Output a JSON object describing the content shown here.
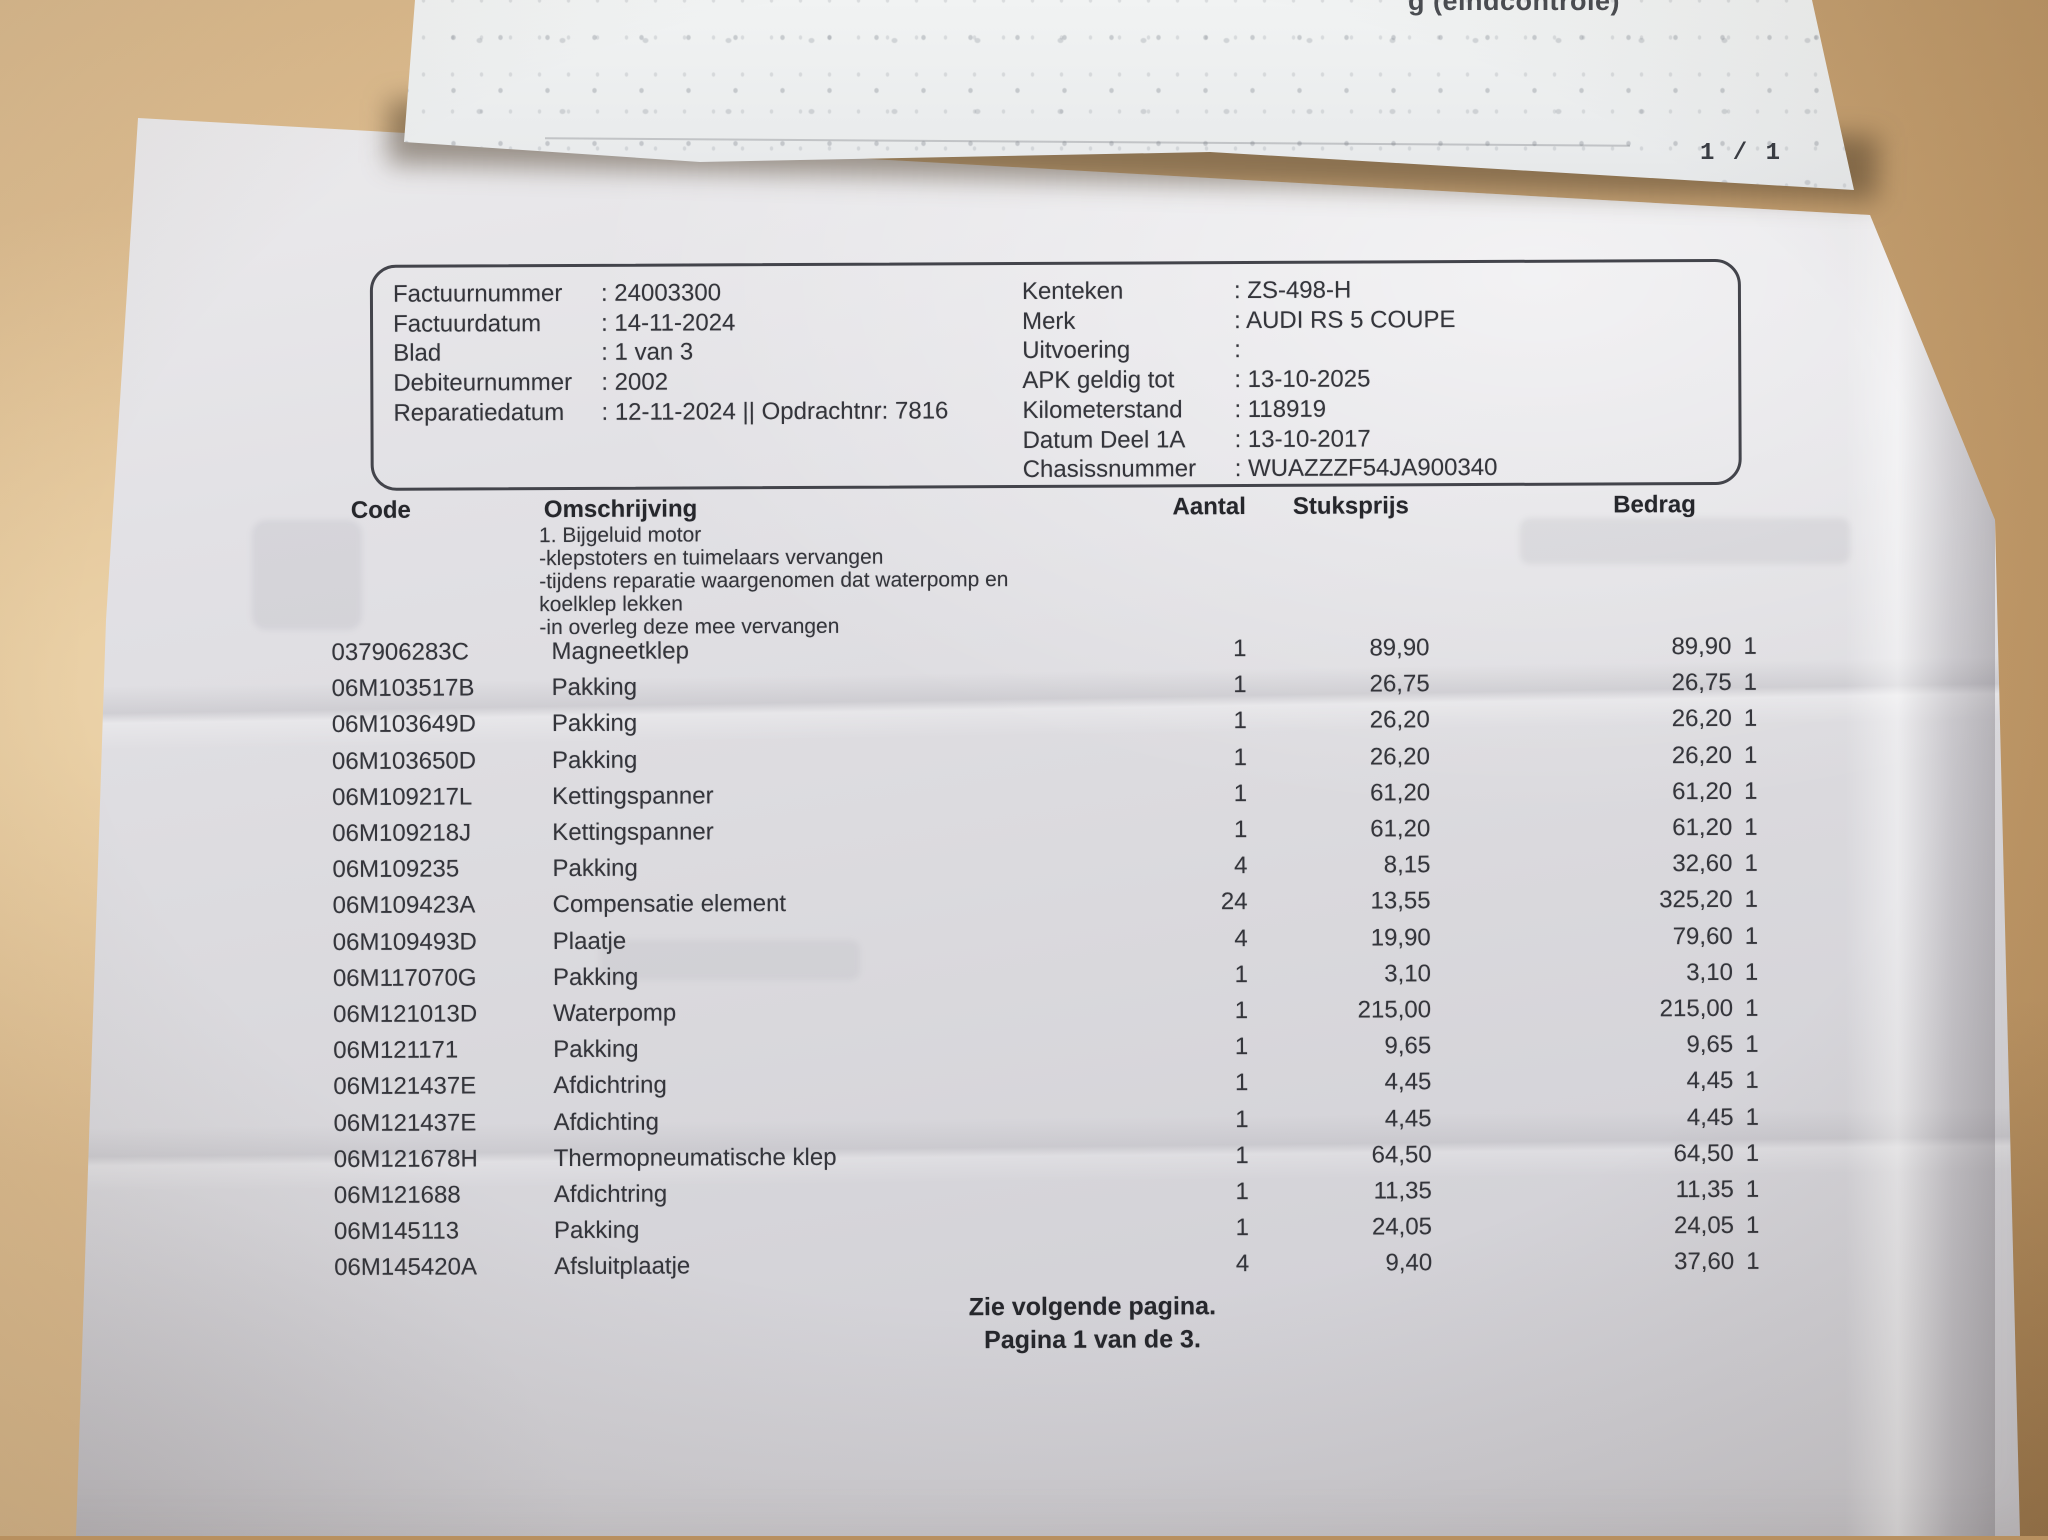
{
  "back_page": {
    "header_fragment": "g (eindcontrole)",
    "page_indicator": "1 / 1"
  },
  "invoice": {
    "meta_left": [
      {
        "label": "Factuurnummer",
        "value": ": 24003300"
      },
      {
        "label": "Factuurdatum",
        "value": ": 14-11-2024"
      },
      {
        "label": "Blad",
        "value": ": 1 van 3"
      },
      {
        "label": "Debiteurnummer",
        "value": ": 2002"
      },
      {
        "label": "Reparatiedatum",
        "value": ": 12-11-2024 || Opdrachtnr: 7816"
      }
    ],
    "meta_right": [
      {
        "label": "Kenteken",
        "value": ": ZS-498-H"
      },
      {
        "label": "Merk",
        "value": ": AUDI RS 5 COUPE"
      },
      {
        "label": "Uitvoering",
        "value": ":"
      },
      {
        "label": "APK geldig tot",
        "value": ": 13-10-2025"
      },
      {
        "label": "Kilometerstand",
        "value": ": 118919"
      },
      {
        "label": "Datum Deel 1A",
        "value": ": 13-10-2017"
      },
      {
        "label": "Chasissnummer",
        "value": ": WUAZZZF54JA900340"
      }
    ],
    "table": {
      "headers": {
        "code": "Code",
        "description": "Omschrijving",
        "qty": "Aantal",
        "unit_price": "Stuksprijs",
        "amount": "Bedrag"
      },
      "rows": [
        {
          "code": "037906283C",
          "description": "Magneetklep",
          "qty": "1",
          "unit_price": "89,90",
          "amount": "89,90",
          "vat": "1"
        },
        {
          "code": "06M103517B",
          "description": "Pakking",
          "qty": "1",
          "unit_price": "26,75",
          "amount": "26,75",
          "vat": "1"
        },
        {
          "code": "06M103649D",
          "description": "Pakking",
          "qty": "1",
          "unit_price": "26,20",
          "amount": "26,20",
          "vat": "1"
        },
        {
          "code": "06M103650D",
          "description": "Pakking",
          "qty": "1",
          "unit_price": "26,20",
          "amount": "26,20",
          "vat": "1"
        },
        {
          "code": "06M109217L",
          "description": "Kettingspanner",
          "qty": "1",
          "unit_price": "61,20",
          "amount": "61,20",
          "vat": "1"
        },
        {
          "code": "06M109218J",
          "description": "Kettingspanner",
          "qty": "1",
          "unit_price": "61,20",
          "amount": "61,20",
          "vat": "1"
        },
        {
          "code": "06M109235",
          "description": "Pakking",
          "qty": "4",
          "unit_price": "8,15",
          "amount": "32,60",
          "vat": "1"
        },
        {
          "code": "06M109423A",
          "description": "Compensatie element",
          "qty": "24",
          "unit_price": "13,55",
          "amount": "325,20",
          "vat": "1"
        },
        {
          "code": "06M109493D",
          "description": "Plaatje",
          "qty": "4",
          "unit_price": "19,90",
          "amount": "79,60",
          "vat": "1"
        },
        {
          "code": "06M117070G",
          "description": "Pakking",
          "qty": "1",
          "unit_price": "3,10",
          "amount": "3,10",
          "vat": "1"
        },
        {
          "code": "06M121013D",
          "description": "Waterpomp",
          "qty": "1",
          "unit_price": "215,00",
          "amount": "215,00",
          "vat": "1"
        },
        {
          "code": "06M121171",
          "description": "Pakking",
          "qty": "1",
          "unit_price": "9,65",
          "amount": "9,65",
          "vat": "1"
        },
        {
          "code": "06M121437E",
          "description": "Afdichtring",
          "qty": "1",
          "unit_price": "4,45",
          "amount": "4,45",
          "vat": "1"
        },
        {
          "code": "06M121437E",
          "description": "Afdichting",
          "qty": "1",
          "unit_price": "4,45",
          "amount": "4,45",
          "vat": "1"
        },
        {
          "code": "06M121678H",
          "description": "Thermopneumatische klep",
          "qty": "1",
          "unit_price": "64,50",
          "amount": "64,50",
          "vat": "1"
        },
        {
          "code": "06M121688",
          "description": "Afdichtring",
          "qty": "1",
          "unit_price": "11,35",
          "amount": "11,35",
          "vat": "1"
        },
        {
          "code": "06M145113",
          "description": "Pakking",
          "qty": "1",
          "unit_price": "24,05",
          "amount": "24,05",
          "vat": "1"
        },
        {
          "code": "06M145420A",
          "description": "Afsluitplaatje",
          "qty": "4",
          "unit_price": "9,40",
          "amount": "37,60",
          "vat": "1"
        }
      ]
    },
    "work_description": [
      "1. Bijgeluid motor",
      "-klepstoters en tuimelaars vervangen",
      "-tijdens reparatie waargenomen dat waterpomp en",
      "koelklep lekken",
      "-in overleg deze mee vervangen"
    ],
    "footer_lines": [
      "Zie volgende pagina.",
      "Pagina 1 van de 3."
    ]
  }
}
